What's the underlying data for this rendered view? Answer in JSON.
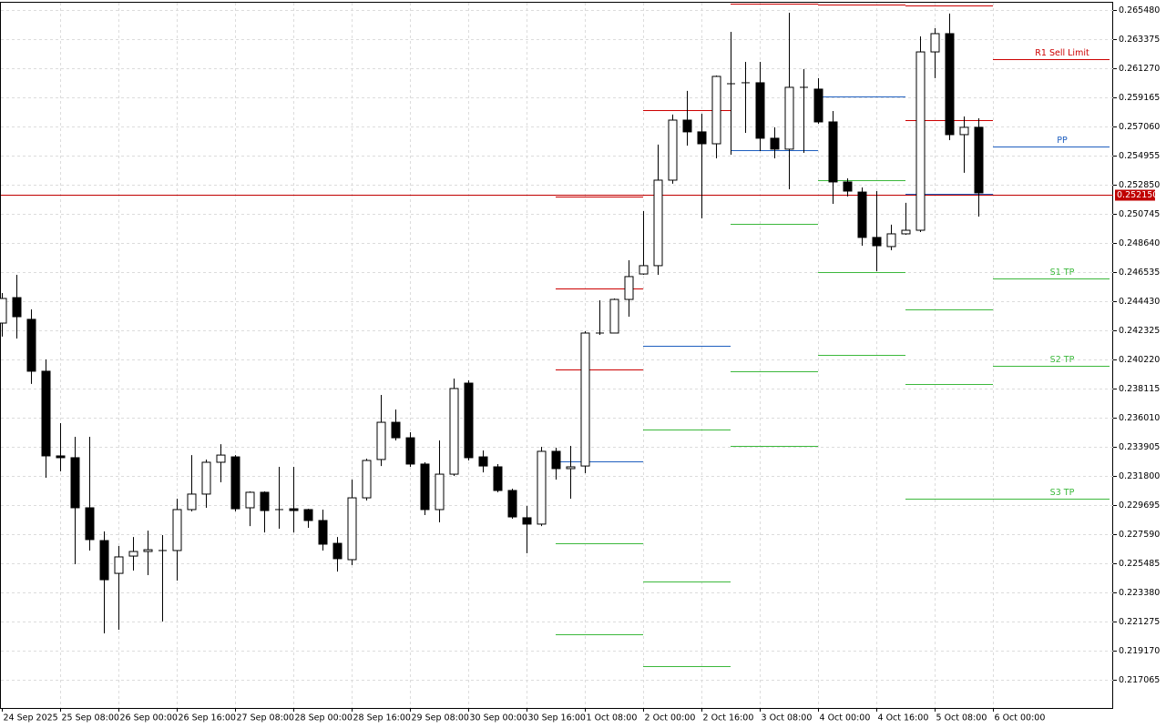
{
  "chart_data": {
    "type": "candlestick",
    "open": [
      0.24285,
      0.24469,
      0.24312,
      0.23937,
      0.23325,
      0.23312,
      0.2295,
      0.22713,
      0.22476,
      0.22601,
      0.22634,
      0.22641,
      0.22641,
      0.22937,
      0.23049,
      0.23279,
      0.23318,
      0.2295,
      0.23062,
      0.22937,
      0.22943,
      0.22937,
      0.22858,
      0.22693,
      0.22575,
      0.23022,
      0.23299,
      0.23568,
      0.23456,
      0.23266,
      0.22937,
      0.23193,
      0.23851,
      0.23318,
      0.23246,
      0.23075,
      0.22878,
      0.22832,
      0.23358,
      0.23233,
      0.23252,
      0.24213,
      0.24213,
      0.24456,
      0.2464,
      0.247,
      0.25318,
      0.25752,
      0.25667,
      0.25581,
      0.26015,
      0.26022,
      0.26022,
      0.25621,
      0.25542,
      0.25989,
      0.25976,
      0.25739,
      0.25305,
      0.25232,
      0.24904,
      0.24838,
      0.2493,
      0.24956,
      0.26245,
      0.26377,
      0.25647,
      0.257
    ],
    "high": [
      0.24502,
      0.24634,
      0.24384,
      0.24022,
      0.23562,
      0.23463,
      0.23463,
      0.22779,
      0.22674,
      0.22739,
      0.22785,
      0.22753,
      0.23016,
      0.23331,
      0.23299,
      0.2341,
      0.23331,
      0.23068,
      0.23068,
      0.23246,
      0.23246,
      0.22943,
      0.22937,
      0.22739,
      0.23154,
      0.23305,
      0.23766,
      0.2366,
      0.23496,
      0.23279,
      0.23437,
      0.23884,
      0.23871,
      0.23364,
      0.23266,
      0.23088,
      0.22963,
      0.23391,
      0.23384,
      0.23397,
      0.24226,
      0.2445,
      0.24463,
      0.24739,
      0.25094,
      0.25575,
      0.25792,
      0.25963,
      0.25798,
      0.26074,
      0.2639,
      0.26173,
      0.26173,
      0.257,
      0.26528,
      0.26121,
      0.26055,
      0.25818,
      0.25331,
      0.25265,
      0.25239,
      0.24996,
      0.25154,
      0.26357,
      0.26417,
      0.26522,
      0.25778,
      0.25765
    ],
    "low": [
      0.24187,
      0.24173,
      0.23845,
      0.23167,
      0.23213,
      0.22542,
      0.22641,
      0.22042,
      0.22069,
      0.22496,
      0.22463,
      0.22128,
      0.22424,
      0.22924,
      0.2295,
      0.23134,
      0.22924,
      0.22818,
      0.22772,
      0.22799,
      0.22772,
      0.22805,
      0.22641,
      0.22489,
      0.22536,
      0.23003,
      0.23252,
      0.23437,
      0.23246,
      0.22897,
      0.22845,
      0.2318,
      0.23292,
      0.23206,
      0.23062,
      0.22871,
      0.22621,
      0.22818,
      0.23154,
      0.23016,
      0.232,
      0.242,
      0.24213,
      0.24331,
      0.24634,
      0.24634,
      0.25292,
      0.25568,
      0.25042,
      0.25476,
      0.25502,
      0.2566,
      0.25528,
      0.25476,
      0.25252,
      0.25515,
      0.25726,
      0.25147,
      0.252,
      0.24844,
      0.2466,
      0.24811,
      0.24923,
      0.24943,
      0.26055,
      0.25607,
      0.25371,
      0.25055
    ],
    "close": [
      0.24463,
      0.24331,
      0.23937,
      0.23325,
      0.23312,
      0.2295,
      0.2272,
      0.2243,
      0.22595,
      0.22634,
      0.22647,
      0.22641,
      0.22937,
      0.23049,
      0.23279,
      0.23331,
      0.22943,
      0.23062,
      0.2293,
      0.2293,
      0.2293,
      0.22858,
      0.22687,
      0.22582,
      0.23022,
      0.23292,
      0.23568,
      0.23456,
      0.23266,
      0.22937,
      0.23193,
      0.23812,
      0.23312,
      0.23252,
      0.23075,
      0.22884,
      0.22832,
      0.23358,
      0.23233,
      0.23246,
      0.24213,
      0.24206,
      0.24456,
      0.24621,
      0.247,
      0.25318,
      0.25752,
      0.25667,
      0.25581,
      0.26068,
      0.26015,
      0.26015,
      0.25621,
      0.25542,
      0.25989,
      0.25982,
      0.25739,
      0.25305,
      0.25239,
      0.24904,
      0.24844,
      0.2493,
      0.24956,
      0.26245,
      0.26377,
      0.25647,
      0.257,
      0.25226
    ],
    "up_color": "#ffffff",
    "down_color": "#000000",
    "time_labels": [
      "24 Sep 2025",
      "25 Sep 08:00",
      "26 Sep 00:00",
      "26 Sep 16:00",
      "27 Sep 08:00",
      "28 Sep 00:00",
      "28 Sep 16:00",
      "29 Sep 08:00",
      "30 Sep 00:00",
      "30 Sep 16:00",
      "1 Oct 08:00",
      "2 Oct 00:00",
      "2 Oct 16:00",
      "3 Oct 08:00",
      "4 Oct 00:00",
      "4 Oct 16:00",
      "5 Oct 08:00",
      "6 Oct 00:00"
    ],
    "ylim": [
      0.21503,
      0.26607
    ],
    "yticks": [
      {
        "value": 0.26548,
        "label": "0.265480"
      },
      {
        "value": 0.263375,
        "label": "0.263375"
      },
      {
        "value": 0.26127,
        "label": "0.261270"
      },
      {
        "value": 0.259165,
        "label": "0.259165"
      },
      {
        "value": 0.25706,
        "label": "0.257060"
      },
      {
        "value": 0.254955,
        "label": "0.254955"
      },
      {
        "value": 0.25285,
        "label": "0.252850"
      },
      {
        "value": 0.250745,
        "label": "0.250745"
      },
      {
        "value": 0.24864,
        "label": "0.248640"
      },
      {
        "value": 0.246535,
        "label": "0.246535"
      },
      {
        "value": 0.24443,
        "label": "0.244430"
      },
      {
        "value": 0.242325,
        "label": "0.242325"
      },
      {
        "value": 0.24022,
        "label": "0.240220"
      },
      {
        "value": 0.238115,
        "label": "0.238115"
      },
      {
        "value": 0.23601,
        "label": "0.236010"
      },
      {
        "value": 0.233905,
        "label": "0.233905"
      },
      {
        "value": 0.2318,
        "label": "0.231800"
      },
      {
        "value": 0.229695,
        "label": "0.229695"
      },
      {
        "value": 0.22759,
        "label": "0.227590"
      },
      {
        "value": 0.225485,
        "label": "0.225485"
      },
      {
        "value": 0.22338,
        "label": "0.223380"
      },
      {
        "value": 0.221275,
        "label": "0.221275"
      },
      {
        "value": 0.21917,
        "label": "0.219170"
      },
      {
        "value": 0.217065,
        "label": "0.217065"
      }
    ],
    "grid": true,
    "current_price": {
      "value": 0.25215,
      "label": "0.252150",
      "color": "#c00000"
    },
    "pivot_colors": {
      "resistance": "#cc0000",
      "pivot": "#1f5fbf",
      "support": "#3cb83c"
    },
    "pivot_days": [
      {
        "resistance": [
          0.252,
          0.24535,
          0.2395
        ],
        "pivot": 0.23285,
        "support": [
          0.22693,
          0.22035
        ]
      },
      {
        "resistance": [
          0.25825
        ],
        "pivot": 0.24121,
        "support": [
          0.23516,
          0.22417,
          0.21805
        ]
      },
      {
        "resistance": [
          0.26594
        ],
        "pivot": 0.25535,
        "support": [
          0.25002,
          0.23937,
          0.23397
        ]
      },
      {
        "resistance": [
          0.26588
        ],
        "pivot": 0.25923,
        "support": [
          0.25318,
          0.24654,
          0.24055
        ]
      },
      {
        "resistance": [
          0.26581,
          0.25752
        ],
        "pivot": 0.25219,
        "support": [
          0.24384,
          0.23845,
          0.23016
        ]
      }
    ],
    "levels": [
      {
        "label": "R1 Sell Limit",
        "value": 0.26193,
        "color": "#cc0000"
      },
      {
        "label": "PP",
        "value": 0.25561,
        "color": "#1f5fbf"
      },
      {
        "label": "S1 TP",
        "value": 0.24608,
        "color": "#3cb83c"
      },
      {
        "label": "S2 TP",
        "value": 0.23976,
        "color": "#3cb83c"
      },
      {
        "label": "S3 TP",
        "value": 0.23016,
        "color": "#3cb83c"
      }
    ]
  }
}
